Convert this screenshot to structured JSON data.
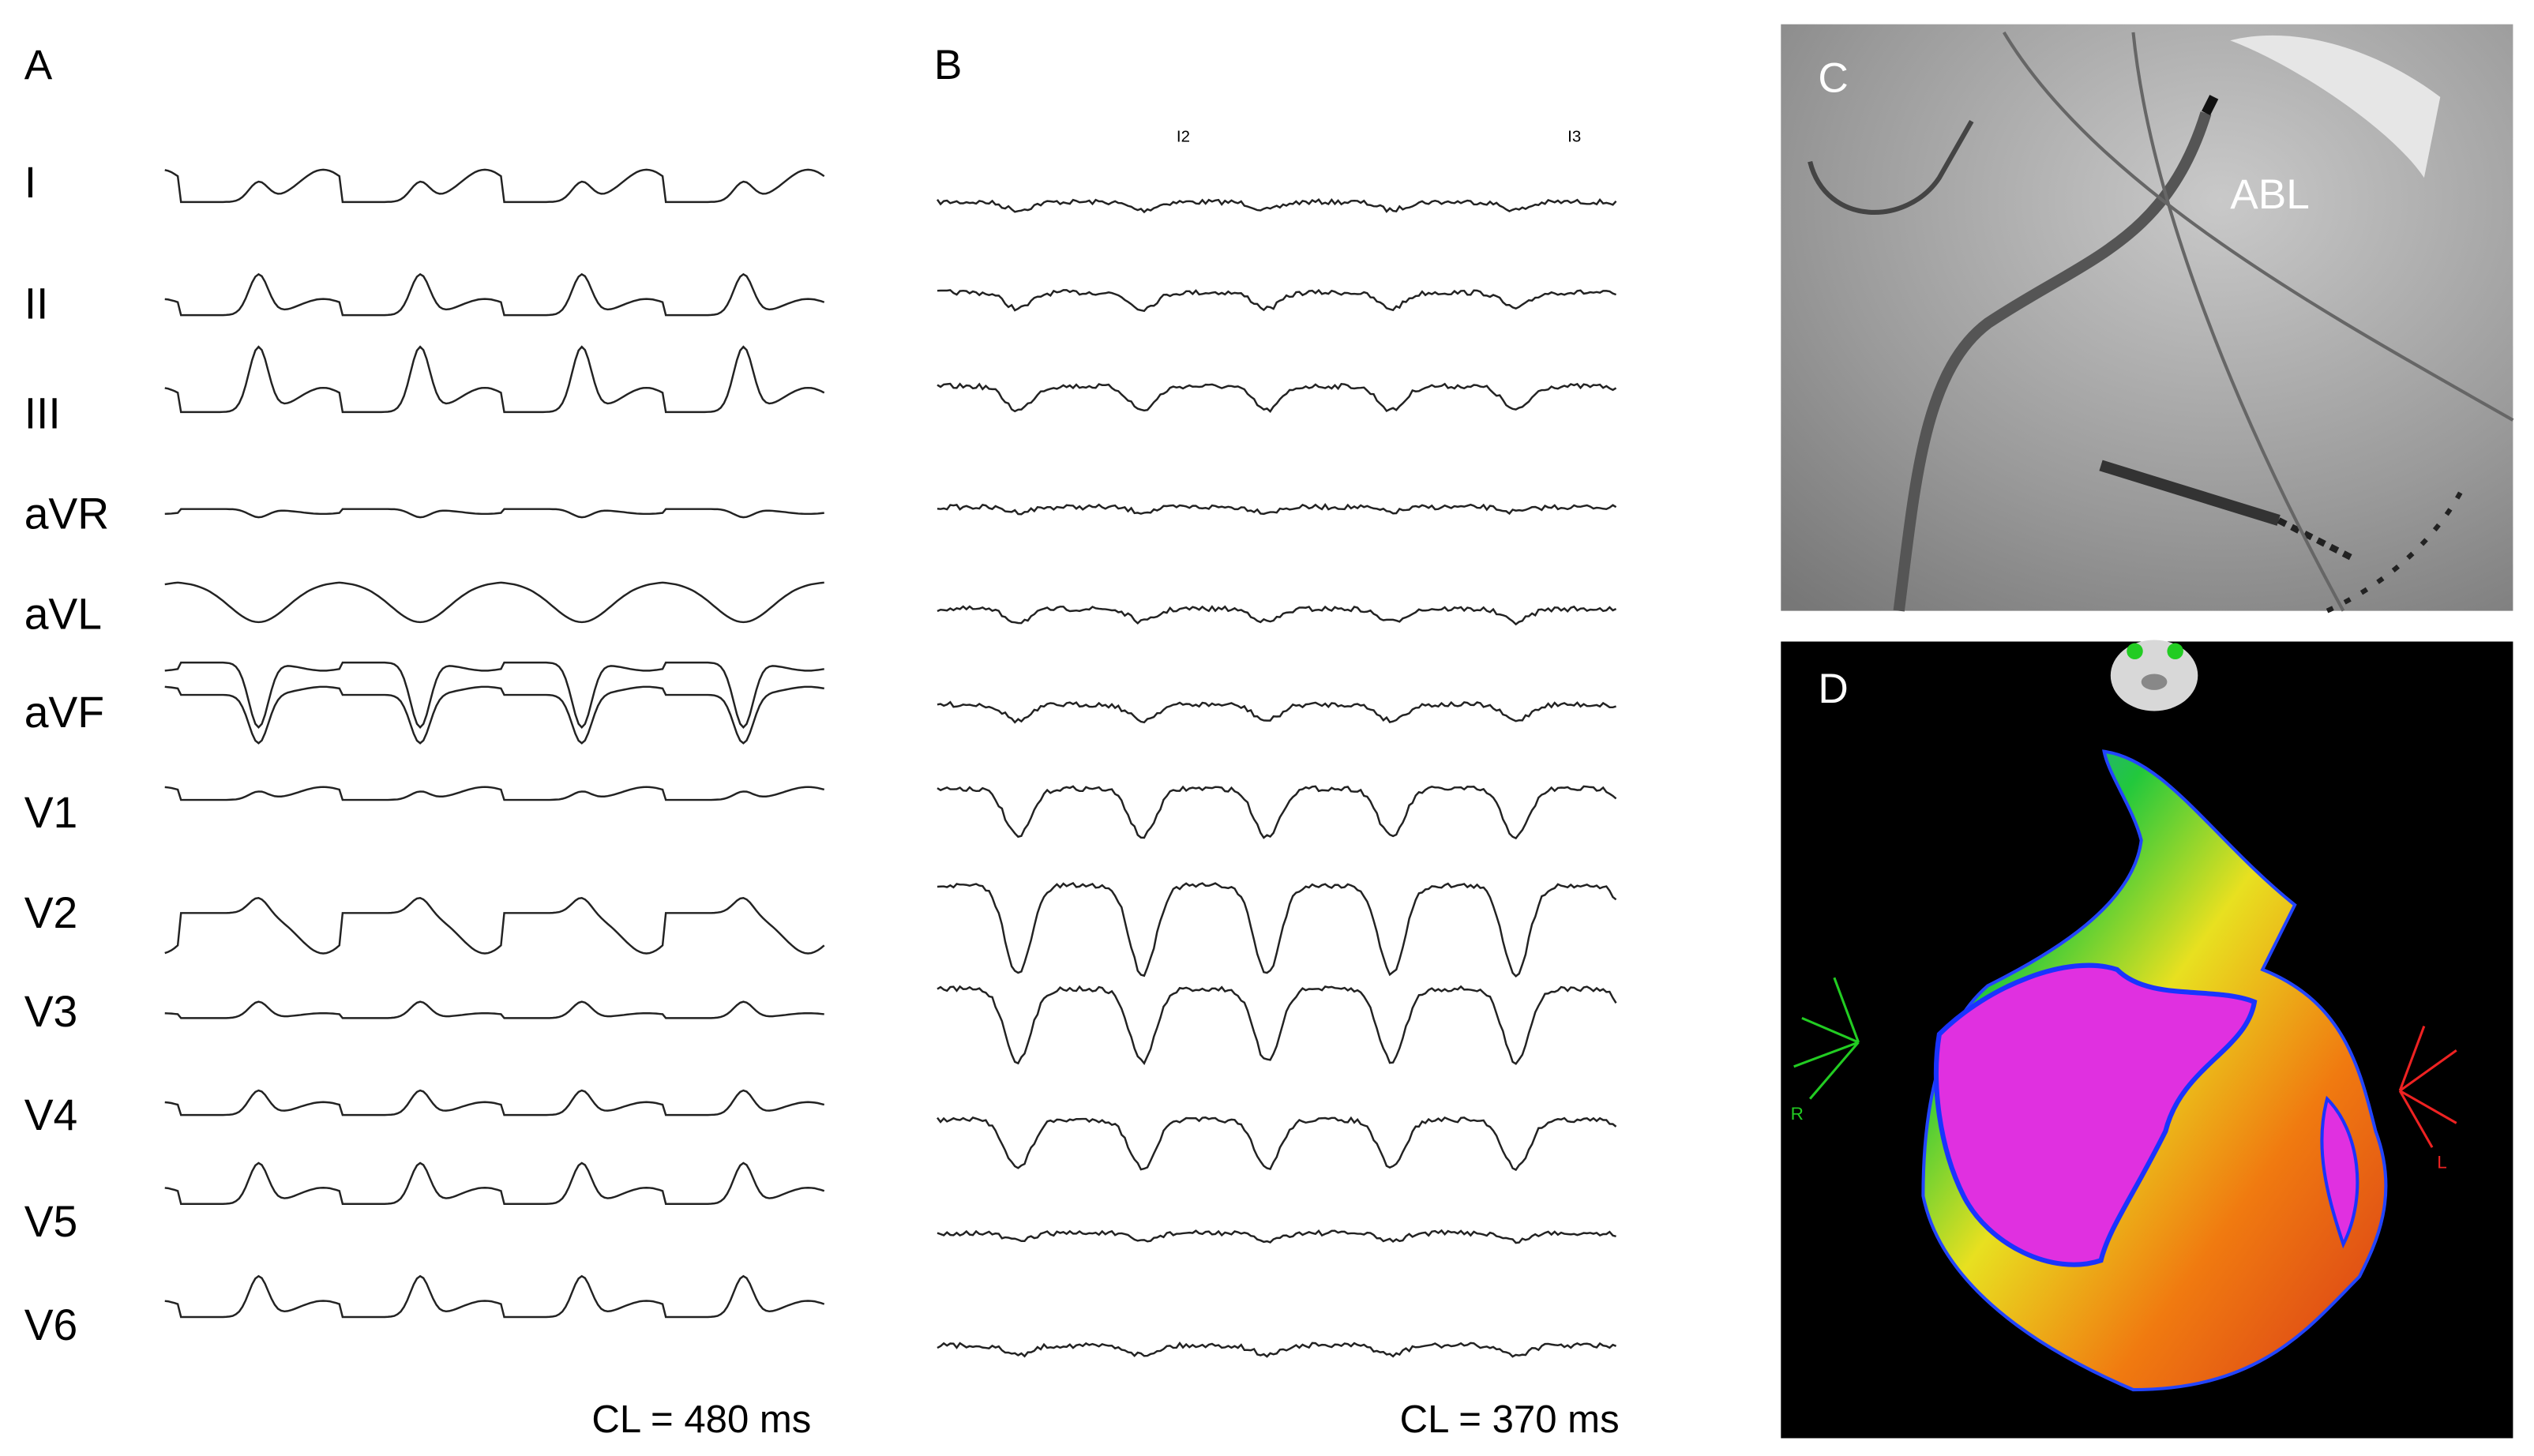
{
  "panels": [
    {
      "label": "A",
      "leads": [
        "I",
        "II",
        "III",
        "aVR",
        "aVL",
        "aVF",
        "V1",
        "V2",
        "V3",
        "V4",
        "V5",
        "V6"
      ],
      "caption": "CL = 480 ms"
    },
    {
      "label": "B",
      "markers": [
        "I2",
        "I3"
      ],
      "caption": "CL = 370 ms"
    },
    {
      "label": "C",
      "annotation": "ABL"
    },
    {
      "label": "D",
      "axes": [
        "R",
        "L"
      ]
    }
  ]
}
